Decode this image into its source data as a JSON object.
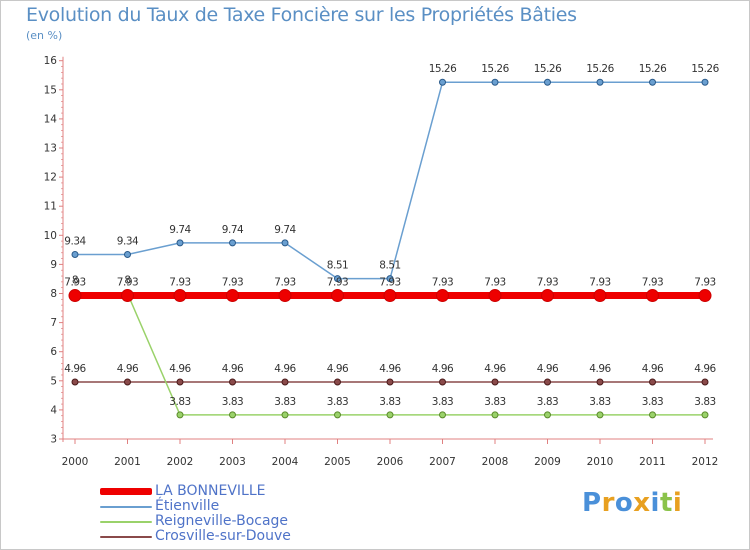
{
  "chart_data": {
    "type": "line",
    "title": "Evolution du Taux de Taxe Foncière sur les Propriétés Bâties",
    "ylabel": "(en %)",
    "xlabel": "",
    "ylim": [
      3,
      16
    ],
    "yticks": [
      3,
      4,
      5,
      6,
      7,
      8,
      9,
      10,
      11,
      12,
      13,
      14,
      15,
      16
    ],
    "ytick_labels": [
      "3",
      "4",
      "5",
      "6",
      "7",
      "8",
      "9",
      "10",
      "11",
      "12",
      "13",
      "14",
      "15",
      "16"
    ],
    "x": [
      "2000",
      "2001",
      "2002",
      "2003",
      "2004",
      "2005",
      "2006",
      "2007",
      "2008",
      "2009",
      "2010",
      "2011",
      "2012"
    ],
    "grid": false,
    "legend_position": "bottom-left",
    "series": [
      {
        "name": "LA BONNEVILLE",
        "color": "#ee0000",
        "values": [
          7.93,
          7.93,
          7.93,
          7.93,
          7.93,
          7.93,
          7.93,
          7.93,
          7.93,
          7.93,
          7.93,
          7.93,
          7.93
        ],
        "labels": [
          "7.93",
          "7.93",
          "7.93",
          "7.93",
          "7.93",
          "7.93",
          "7.93",
          "7.93",
          "7.93",
          "7.93",
          "7.93",
          "7.93",
          "7.93"
        ]
      },
      {
        "name": "Étienville",
        "color": "#6a9fd0",
        "values": [
          9.34,
          9.34,
          9.74,
          9.74,
          9.74,
          8.51,
          8.51,
          15.26,
          15.26,
          15.26,
          15.26,
          15.26,
          15.26
        ],
        "labels": [
          "9.34",
          "9.34",
          "9.74",
          "9.74",
          "9.74",
          "8.51",
          "8.51",
          "15.26",
          "15.26",
          "15.26",
          "15.26",
          "15.26",
          "15.26"
        ]
      },
      {
        "name": "Reigneville-Bocage",
        "color": "#9ad26a",
        "values": [
          8,
          8,
          3.83,
          3.83,
          3.83,
          3.83,
          3.83,
          3.83,
          3.83,
          3.83,
          3.83,
          3.83,
          3.83
        ],
        "labels": [
          "8",
          "8",
          "3.83",
          "3.83",
          "3.83",
          "3.83",
          "3.83",
          "3.83",
          "3.83",
          "3.83",
          "3.83",
          "3.83",
          "3.83"
        ]
      },
      {
        "name": "Crosville-sur-Douve",
        "color": "#8a4a4a",
        "values": [
          4.96,
          4.96,
          4.96,
          4.96,
          4.96,
          4.96,
          4.96,
          4.96,
          4.96,
          4.96,
          4.96,
          4.96,
          4.96
        ],
        "labels": [
          "4.96",
          "4.96",
          "4.96",
          "4.96",
          "4.96",
          "4.96",
          "4.96",
          "4.96",
          "4.96",
          "4.96",
          "4.96",
          "4.96",
          "4.96"
        ]
      }
    ]
  },
  "legend": {
    "items": [
      {
        "label": "LA BONNEVILLE",
        "color": "#ee0000"
      },
      {
        "label": "Étienville",
        "color": "#6a9fd0"
      },
      {
        "label": "Reigneville-Bocage",
        "color": "#9ad26a"
      },
      {
        "label": "Crosville-sur-Douve",
        "color": "#8a4a4a"
      }
    ]
  },
  "logo": {
    "letters": [
      "P",
      "r",
      "o",
      "x",
      "i",
      "t",
      "i"
    ],
    "colors": [
      "#4a90d9",
      "#e8a020",
      "#4a90d9",
      "#e8a020",
      "#4a90d9",
      "#8bc34a",
      "#e8a020"
    ]
  }
}
